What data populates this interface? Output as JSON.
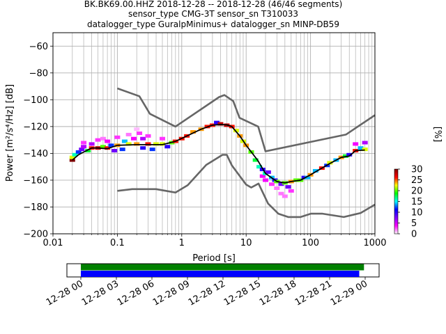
{
  "title": {
    "line1": "BK.BK69.00.HHZ   2018-12-28 -- 2018-12-28  (46/46 segments)",
    "line2": "sensor_type CMG-3T sensor_sn T310033",
    "line3": "datalogger_type GuralpMinimus+ datalogger_sn MINP-DB59"
  },
  "chart_data": [
    {
      "type": "heatmap",
      "xlabel": "Period [s]",
      "ylabel": "Power [m²/s⁴/Hz] [dB]",
      "xscale": "log",
      "xlim": [
        0.01,
        1000
      ],
      "ylim": [
        -200,
        -50
      ],
      "xticks": [
        0.01,
        0.1,
        1,
        10,
        100,
        1000
      ],
      "xtick_labels": [
        "0.01",
        "0.1",
        "1",
        "10",
        "100",
        "1000"
      ],
      "yticks": [
        -200,
        -180,
        -160,
        -140,
        -120,
        -100,
        -80,
        -60
      ],
      "ytick_labels": [
        "−200",
        "−180",
        "−160",
        "−140",
        "−120",
        "−100",
        "−80",
        "−60"
      ],
      "grid": true,
      "colorbar": {
        "label": "[%]",
        "range": [
          0,
          30
        ],
        "ticks": [
          0,
          5,
          10,
          15,
          20,
          25,
          30
        ],
        "tick_labels": [
          "0",
          "5",
          "10",
          "15",
          "20",
          "25",
          "30"
        ],
        "colormap": [
          "#ffffff",
          "#ff00ff",
          "#7f00ff",
          "#0000ff",
          "#00ffff",
          "#00ff00",
          "#ffff00",
          "#ff0000",
          "#800000"
        ]
      },
      "noise_models": {
        "high": [
          [
            0.1,
            -91.5
          ],
          [
            0.22,
            -97.4
          ],
          [
            0.32,
            -110.5
          ],
          [
            0.8,
            -120
          ],
          [
            3.8,
            -98
          ],
          [
            4.6,
            -96.5
          ],
          [
            6.3,
            -101
          ],
          [
            7.9,
            -113.5
          ],
          [
            15.4,
            -120
          ],
          [
            20,
            -138.5
          ],
          [
            354.8,
            -126
          ],
          [
            1000,
            -111.5
          ]
        ],
        "low": [
          [
            0.1,
            -168
          ],
          [
            0.17,
            -166.7
          ],
          [
            0.4,
            -166.7
          ],
          [
            0.8,
            -169.2
          ],
          [
            1.24,
            -163.7
          ],
          [
            2.4,
            -148.6
          ],
          [
            4.3,
            -141.1
          ],
          [
            5,
            -141.1
          ],
          [
            6,
            -149
          ],
          [
            10,
            -163.3
          ],
          [
            12,
            -165.5
          ],
          [
            15.6,
            -162.5
          ],
          [
            21.9,
            -177.5
          ],
          [
            31.6,
            -185
          ],
          [
            45,
            -187.5
          ],
          [
            70,
            -187.5
          ],
          [
            101,
            -185
          ],
          [
            154,
            -185
          ],
          [
            328,
            -187.5
          ],
          [
            600,
            -184.5
          ],
          [
            1000,
            -178.2
          ]
        ]
      },
      "mean_psd": [
        [
          0.02,
          -145
        ],
        [
          0.025,
          -141
        ],
        [
          0.03,
          -139
        ],
        [
          0.04,
          -136
        ],
        [
          0.05,
          -136
        ],
        [
          0.07,
          -136.5
        ],
        [
          0.1,
          -134
        ],
        [
          0.2,
          -133.5
        ],
        [
          0.3,
          -133.5
        ],
        [
          0.5,
          -133.5
        ],
        [
          0.8,
          -131
        ],
        [
          1.2,
          -127
        ],
        [
          2,
          -122
        ],
        [
          3,
          -119
        ],
        [
          4,
          -118.5
        ],
        [
          5,
          -118.7
        ],
        [
          6,
          -120
        ],
        [
          8,
          -127
        ],
        [
          10,
          -134
        ],
        [
          15,
          -145
        ],
        [
          20,
          -155
        ],
        [
          30,
          -161
        ],
        [
          40,
          -162
        ],
        [
          50,
          -161
        ],
        [
          70,
          -160
        ],
        [
          100,
          -156
        ],
        [
          150,
          -151
        ],
        [
          200,
          -147.5
        ],
        [
          300,
          -143
        ],
        [
          400,
          -142
        ],
        [
          500,
          -138
        ],
        [
          700,
          -137.5
        ]
      ],
      "psd_samples": [
        [
          0.02,
          -145,
          30
        ],
        [
          0.02,
          -143,
          22
        ],
        [
          0.022,
          -141,
          16
        ],
        [
          0.025,
          -139,
          12
        ],
        [
          0.028,
          -137,
          8
        ],
        [
          0.03,
          -135,
          6
        ],
        [
          0.03,
          -132,
          3
        ],
        [
          0.035,
          -138,
          18
        ],
        [
          0.04,
          -136,
          26
        ],
        [
          0.04,
          -133,
          6
        ],
        [
          0.05,
          -136,
          28
        ],
        [
          0.05,
          -130,
          3
        ],
        [
          0.06,
          -135,
          20
        ],
        [
          0.06,
          -129,
          2
        ],
        [
          0.07,
          -136,
          26
        ],
        [
          0.07,
          -131,
          4
        ],
        [
          0.08,
          -134,
          12
        ],
        [
          0.09,
          -138,
          8
        ],
        [
          0.1,
          -134,
          24
        ],
        [
          0.1,
          -128,
          3
        ],
        [
          0.12,
          -137,
          12
        ],
        [
          0.13,
          -131,
          14
        ],
        [
          0.15,
          -133,
          22
        ],
        [
          0.15,
          -126,
          2
        ],
        [
          0.18,
          -129,
          4
        ],
        [
          0.2,
          -133,
          24
        ],
        [
          0.2,
          -122,
          1
        ],
        [
          0.22,
          -125,
          3
        ],
        [
          0.25,
          -129,
          6
        ],
        [
          0.25,
          -136,
          10
        ],
        [
          0.3,
          -133,
          26
        ],
        [
          0.3,
          -127,
          3
        ],
        [
          0.35,
          -137,
          12
        ],
        [
          0.4,
          -133,
          22
        ],
        [
          0.5,
          -133,
          22
        ],
        [
          0.5,
          -129,
          3
        ],
        [
          0.6,
          -135,
          10
        ],
        [
          0.7,
          -132,
          20
        ],
        [
          0.8,
          -131,
          26
        ],
        [
          1.0,
          -129,
          26
        ],
        [
          1.2,
          -127,
          26
        ],
        [
          1.5,
          -124,
          24
        ],
        [
          2.0,
          -122,
          24
        ],
        [
          2.5,
          -120,
          26
        ],
        [
          3.0,
          -119,
          26
        ],
        [
          3.5,
          -117,
          10
        ],
        [
          4.0,
          -118,
          28
        ],
        [
          5.0,
          -119,
          28
        ],
        [
          6.0,
          -120,
          26
        ],
        [
          7.0,
          -123,
          22
        ],
        [
          8.0,
          -127,
          24
        ],
        [
          9.0,
          -131,
          22
        ],
        [
          10,
          -134,
          24
        ],
        [
          12,
          -139,
          20
        ],
        [
          14,
          -145,
          18
        ],
        [
          16,
          -150,
          16
        ],
        [
          18,
          -152,
          10
        ],
        [
          18,
          -157,
          4
        ],
        [
          20,
          -155,
          16
        ],
        [
          20,
          -160,
          4
        ],
        [
          22,
          -154,
          8
        ],
        [
          25,
          -158,
          14
        ],
        [
          25,
          -163,
          3
        ],
        [
          28,
          -160,
          10
        ],
        [
          30,
          -161,
          20
        ],
        [
          30,
          -166,
          2
        ],
        [
          35,
          -163,
          8
        ],
        [
          35,
          -170,
          2
        ],
        [
          40,
          -162,
          20
        ],
        [
          40,
          -172,
          2
        ],
        [
          45,
          -165,
          8
        ],
        [
          50,
          -161,
          24
        ],
        [
          50,
          -168,
          3
        ],
        [
          60,
          -160,
          20
        ],
        [
          70,
          -160,
          20
        ],
        [
          80,
          -158,
          10
        ],
        [
          90,
          -158,
          14
        ],
        [
          100,
          -156,
          24
        ],
        [
          120,
          -153,
          14
        ],
        [
          150,
          -151,
          26
        ],
        [
          180,
          -149,
          12
        ],
        [
          200,
          -147,
          22
        ],
        [
          250,
          -145,
          14
        ],
        [
          300,
          -143,
          24
        ],
        [
          350,
          -142,
          18
        ],
        [
          400,
          -141,
          10
        ],
        [
          500,
          -138,
          26
        ],
        [
          500,
          -133,
          4
        ],
        [
          600,
          -136,
          14
        ],
        [
          700,
          -137,
          22
        ],
        [
          700,
          -132,
          6
        ]
      ]
    },
    {
      "type": "timeline",
      "xlabel": "",
      "tick_labels": [
        "12-28 00",
        "12-28 03",
        "12-28 06",
        "12-28 09",
        "12-28 12",
        "12-28 15",
        "12-28 18",
        "12-28 21",
        "12-29 00"
      ],
      "series": [
        {
          "color": "#008000",
          "start_hour": 0.0,
          "end_hour": 23.9
        },
        {
          "color": "#0000ff",
          "start_hour": 0.0,
          "end_hour": 23.5
        }
      ]
    }
  ]
}
